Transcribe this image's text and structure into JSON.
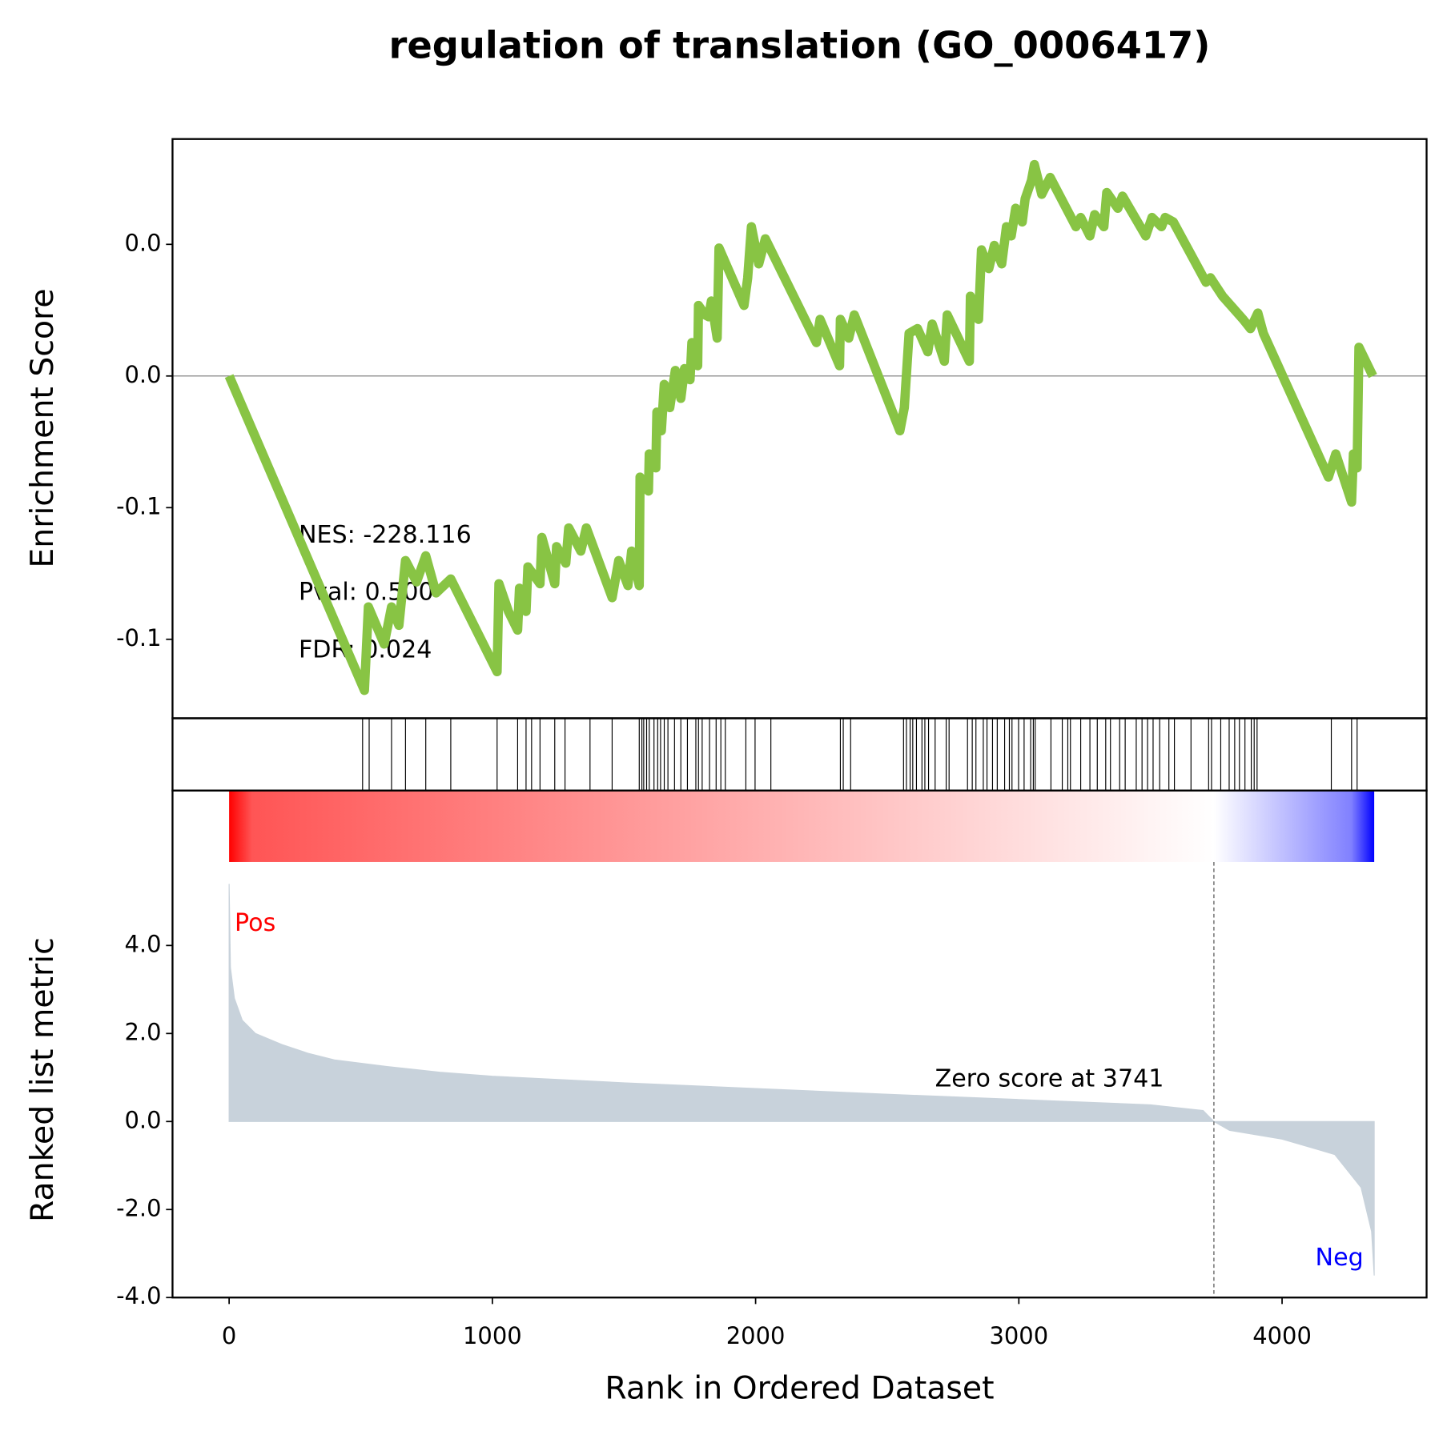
{
  "chart_data": [
    {
      "type": "line",
      "title": "regulation of translation (GO_0006417)",
      "ylabel": "Enrichment Score",
      "color": "#88c444",
      "hline": 0,
      "xlim": [
        -215,
        4549
      ],
      "ylim": [
        -0.13,
        0.09
      ],
      "yticks": [
        {
          "value": 0.05,
          "label": "0.0"
        },
        {
          "value": 0,
          "label": "0.0"
        },
        {
          "value": -0.05,
          "label": "-0.1"
        },
        {
          "value": -0.1,
          "label": "-0.1"
        }
      ],
      "annotations": [
        "NES: -228.116",
        "Pval: 0.500",
        "FDR: 0.024"
      ],
      "x": [
        0,
        514,
        529,
        589,
        617,
        645,
        670,
        712,
        747,
        786,
        842,
        1018,
        1025,
        1061,
        1096,
        1103,
        1128,
        1135,
        1181,
        1188,
        1237,
        1244,
        1279,
        1290,
        1336,
        1357,
        1455,
        1480,
        1515,
        1529,
        1558,
        1561,
        1593,
        1596,
        1621,
        1625,
        1642,
        1653,
        1674,
        1695,
        1716,
        1730,
        1751,
        1758,
        1780,
        1783,
        1808,
        1822,
        1832,
        1854,
        1861,
        1956,
        1970,
        1984,
        2012,
        2037,
        2231,
        2245,
        2319,
        2322,
        2354,
        2375,
        2548,
        2565,
        2583,
        2615,
        2654,
        2671,
        2717,
        2728,
        2812,
        2816,
        2847,
        2858,
        2886,
        2907,
        2935,
        2953,
        2971,
        2988,
        3013,
        3024,
        3048,
        3059,
        3087,
        3119,
        3217,
        3235,
        3270,
        3288,
        3323,
        3334,
        3376,
        3394,
        3482,
        3506,
        3542,
        3556,
        3587,
        3711,
        3728,
        3774,
        3852,
        3880,
        3908,
        3929,
        4176,
        4204,
        4264,
        4271,
        4285,
        4292,
        4345
      ],
      "values": [
        0,
        -0.1194,
        -0.0877,
        -0.1018,
        -0.0877,
        -0.0947,
        -0.0701,
        -0.0782,
        -0.0683,
        -0.0824,
        -0.0771,
        -0.1123,
        -0.0789,
        -0.0894,
        -0.0965,
        -0.0806,
        -0.0894,
        -0.0725,
        -0.0789,
        -0.0613,
        -0.0789,
        -0.0648,
        -0.0711,
        -0.0577,
        -0.0665,
        -0.0577,
        -0.0842,
        -0.0701,
        -0.0796,
        -0.0665,
        -0.0796,
        -0.0384,
        -0.0437,
        -0.0296,
        -0.0349,
        -0.0137,
        -0.0208,
        -0.0032,
        -0.012,
        0.0021,
        -0.0085,
        0.0028,
        -0.0014,
        0.0127,
        0.0039,
        0.0268,
        0.0232,
        0.0225,
        0.0285,
        0.0144,
        0.0486,
        0.0268,
        0.0373,
        0.0567,
        0.0426,
        0.0521,
        0.0127,
        0.0215,
        0.0039,
        0.0215,
        0.0144,
        0.0232,
        -0.0208,
        -0.012,
        0.0162,
        0.018,
        0.0092,
        0.0197,
        0.0056,
        0.0232,
        0.0056,
        0.0303,
        0.0215,
        0.0479,
        0.0408,
        0.0496,
        0.0426,
        0.0567,
        0.0532,
        0.0637,
        0.0585,
        0.0673,
        0.0743,
        0.0803,
        0.069,
        0.0754,
        0.0567,
        0.0602,
        0.0532,
        0.0613,
        0.0567,
        0.0697,
        0.0637,
        0.0683,
        0.0532,
        0.0602,
        0.0567,
        0.0602,
        0.0585,
        0.0356,
        0.0373,
        0.0303,
        0.0215,
        0.018,
        0.0239,
        0.0162,
        -0.0384,
        -0.0296,
        -0.0479,
        -0.0296,
        -0.0349,
        0.0109,
        0
      ]
    },
    {
      "type": "rug",
      "xlim": [
        -215,
        4549
      ],
      "x": [
        507,
        532,
        617,
        670,
        747,
        842,
        1018,
        1096,
        1128,
        1149,
        1181,
        1237,
        1276,
        1371,
        1455,
        1558,
        1568,
        1575,
        1586,
        1596,
        1614,
        1628,
        1639,
        1653,
        1667,
        1692,
        1716,
        1741,
        1773,
        1783,
        1797,
        1825,
        1850,
        1868,
        1885,
        1963,
        1998,
        2058,
        2322,
        2333,
        2361,
        2562,
        2573,
        2587,
        2597,
        2611,
        2632,
        2643,
        2657,
        2682,
        2724,
        2735,
        2805,
        2823,
        2837,
        2865,
        2879,
        2900,
        2918,
        2946,
        2964,
        2974,
        2999,
        3020,
        3045,
        3055,
        3062,
        3122,
        3165,
        3186,
        3196,
        3235,
        3270,
        3298,
        3330,
        3348,
        3383,
        3404,
        3446,
        3468,
        3489,
        3510,
        3535,
        3570,
        3591,
        3654,
        3721,
        3732,
        3767,
        3799,
        3820,
        3838,
        3859,
        3883,
        3894,
        3905,
        4187,
        4264,
        4285
      ]
    },
    {
      "type": "area",
      "ylabel": "Ranked list metric",
      "xlabel": "Rank in Ordered Dataset",
      "color": "#c8d2db",
      "xlim": [
        -215,
        4549
      ],
      "ylim": [
        -4,
        7.52
      ],
      "xticks": [
        0,
        1000,
        2000,
        3000,
        4000
      ],
      "yticks": [
        {
          "value": 4,
          "label": "4.0"
        },
        {
          "value": 2,
          "label": "2.0"
        },
        {
          "value": 0,
          "label": "0.0"
        },
        {
          "value": -2,
          "label": "-2.0"
        },
        {
          "value": -4,
          "label": "-4.0"
        }
      ],
      "pos_label": "Pos",
      "neg_label": "Neg",
      "zero_score_rank": 3741,
      "zero_score_label": "Zero score at 3741",
      "x": [
        0,
        5,
        20,
        50,
        100,
        200,
        300,
        400,
        600,
        800,
        1000,
        1500,
        2000,
        2500,
        3000,
        3500,
        3700,
        3741,
        3800,
        4000,
        4200,
        4300,
        4340,
        4350
      ],
      "values": [
        5.4,
        3.5,
        2.8,
        2.3,
        2.0,
        1.75,
        1.55,
        1.4,
        1.25,
        1.12,
        1.03,
        0.88,
        0.75,
        0.62,
        0.5,
        0.38,
        0.25,
        0,
        -0.2,
        -0.4,
        -0.75,
        -1.5,
        -2.5,
        -3.5
      ]
    }
  ]
}
